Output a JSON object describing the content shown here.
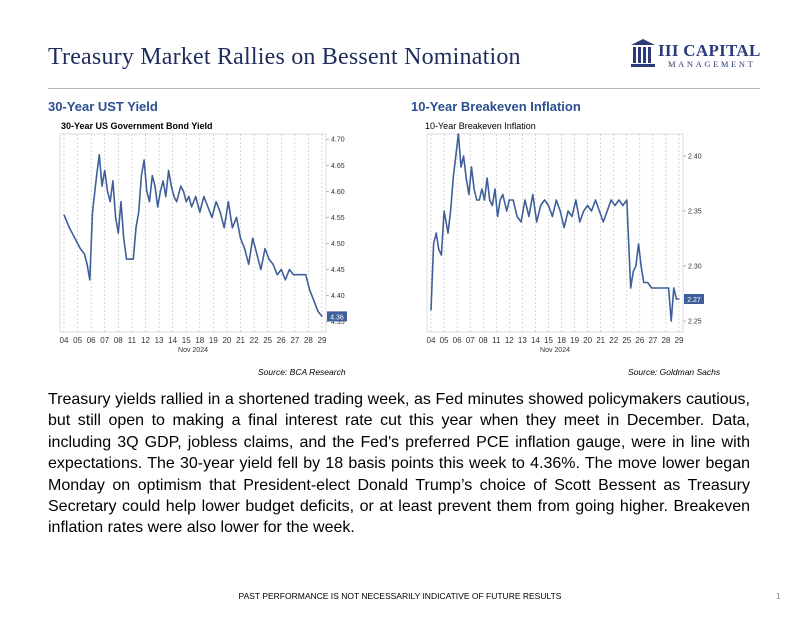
{
  "title": "Treasury Market Rallies on Bessent Nomination",
  "logo": {
    "name": "III CAPITAL",
    "sub": "MANAGEMENT"
  },
  "colors": {
    "title": "#1f2d5c",
    "heading": "#2b4f8f",
    "line": "#3f5f9a",
    "logo": "#2b3a78"
  },
  "charts": {
    "left": {
      "heading": "30-Year UST Yield",
      "source": "Source: BCA Research"
    },
    "right": {
      "heading": "10-Year Breakeven Inflation",
      "source": "Source: Goldman Sachs"
    }
  },
  "chart_data": [
    {
      "type": "line",
      "title": "30-Year US Government Bond Yield",
      "x_ticks": [
        "04",
        "05",
        "06",
        "07",
        "08",
        "11",
        "12",
        "13",
        "14",
        "15",
        "18",
        "19",
        "20",
        "21",
        "22",
        "25",
        "26",
        "27",
        "28",
        "29"
      ],
      "x_caption": "Nov 2024",
      "ylim": [
        4.33,
        4.71
      ],
      "y_ticks": [
        "4.70",
        "4.65",
        "4.60",
        "4.55",
        "4.50",
        "4.45",
        "4.40",
        "4.35"
      ],
      "last_value_label": "4.36",
      "grid": true,
      "series": [
        {
          "x": [
            0,
            0.4,
            0.8,
            1.2,
            1.5,
            1.7,
            1.9,
            2.1,
            2.4,
            2.6,
            2.8,
            3.0,
            3.2,
            3.4,
            3.6,
            3.8,
            4.0,
            4.2,
            4.4,
            4.6,
            4.9,
            5.1,
            5.3,
            5.5,
            5.7,
            5.9,
            6.1,
            6.3,
            6.5,
            6.7,
            6.9,
            7.1,
            7.3,
            7.5,
            7.7,
            7.9,
            8.1,
            8.3,
            8.6,
            8.8,
            9.0,
            9.2,
            9.4,
            9.7,
            10.0,
            10.3,
            10.6,
            10.9,
            11.2,
            11.5,
            11.8,
            12.1,
            12.4,
            12.7,
            13.0,
            13.3,
            13.6,
            13.9,
            14.2,
            14.5,
            14.8,
            15.1,
            15.4,
            15.7,
            16.0,
            16.3,
            16.6,
            16.9,
            17.2,
            17.5,
            17.8,
            18.1,
            18.4,
            18.7,
            19.0
          ],
          "y": [
            4.555,
            4.53,
            4.51,
            4.49,
            4.48,
            4.46,
            4.43,
            4.56,
            4.63,
            4.67,
            4.61,
            4.64,
            4.6,
            4.58,
            4.62,
            4.55,
            4.52,
            4.58,
            4.51,
            4.47,
            4.47,
            4.47,
            4.53,
            4.56,
            4.63,
            4.66,
            4.6,
            4.58,
            4.63,
            4.61,
            4.57,
            4.6,
            4.62,
            4.59,
            4.64,
            4.61,
            4.59,
            4.58,
            4.61,
            4.6,
            4.58,
            4.59,
            4.57,
            4.59,
            4.56,
            4.59,
            4.57,
            4.55,
            4.58,
            4.56,
            4.53,
            4.58,
            4.53,
            4.55,
            4.51,
            4.49,
            4.46,
            4.51,
            4.48,
            4.45,
            4.49,
            4.47,
            4.46,
            4.44,
            4.45,
            4.43,
            4.45,
            4.44,
            4.44,
            4.44,
            4.44,
            4.41,
            4.39,
            4.37,
            4.36
          ]
        }
      ]
    },
    {
      "type": "line",
      "title": "10-Year Breakeven Inflation",
      "x_ticks": [
        "04",
        "05",
        "06",
        "07",
        "08",
        "11",
        "12",
        "13",
        "14",
        "15",
        "18",
        "19",
        "20",
        "21",
        "22",
        "25",
        "26",
        "27",
        "28",
        "29"
      ],
      "x_caption": "Nov 2024",
      "ylim": [
        2.24,
        2.42
      ],
      "y_ticks": [
        "2.40",
        "2.35",
        "2.30",
        "2.25"
      ],
      "last_value_label": "2.27",
      "grid": true,
      "series": [
        {
          "x": [
            0,
            0.2,
            0.4,
            0.6,
            0.8,
            1.0,
            1.3,
            1.5,
            1.7,
            1.9,
            2.1,
            2.3,
            2.5,
            2.7,
            2.9,
            3.1,
            3.3,
            3.5,
            3.7,
            3.9,
            4.1,
            4.3,
            4.5,
            4.7,
            4.9,
            5.1,
            5.3,
            5.5,
            5.8,
            6.0,
            6.3,
            6.6,
            6.9,
            7.2,
            7.5,
            7.8,
            8.1,
            8.4,
            8.7,
            9.0,
            9.3,
            9.6,
            9.9,
            10.2,
            10.5,
            10.8,
            11.1,
            11.4,
            11.7,
            12.0,
            12.3,
            12.6,
            12.9,
            13.2,
            13.5,
            13.8,
            14.1,
            14.4,
            14.7,
            15.0,
            15.3,
            15.5,
            15.7,
            15.9,
            16.1,
            16.3,
            16.6,
            16.9,
            17.2,
            17.5,
            17.8,
            18.0,
            18.2,
            18.4,
            18.6,
            18.8,
            19.0
          ],
          "y": [
            2.26,
            2.32,
            2.33,
            2.315,
            2.31,
            2.35,
            2.33,
            2.35,
            2.38,
            2.4,
            2.42,
            2.39,
            2.4,
            2.38,
            2.365,
            2.39,
            2.37,
            2.36,
            2.36,
            2.37,
            2.36,
            2.38,
            2.36,
            2.355,
            2.37,
            2.345,
            2.36,
            2.365,
            2.35,
            2.36,
            2.36,
            2.345,
            2.34,
            2.36,
            2.345,
            2.365,
            2.34,
            2.355,
            2.36,
            2.355,
            2.345,
            2.36,
            2.35,
            2.335,
            2.35,
            2.345,
            2.36,
            2.34,
            2.35,
            2.355,
            2.35,
            2.36,
            2.35,
            2.34,
            2.35,
            2.36,
            2.355,
            2.36,
            2.355,
            2.36,
            2.28,
            2.295,
            2.3,
            2.32,
            2.3,
            2.285,
            2.285,
            2.28,
            2.28,
            2.28,
            2.28,
            2.28,
            2.28,
            2.25,
            2.28,
            2.27,
            2.27
          ]
        }
      ]
    }
  ],
  "body": "Treasury yields rallied in a shortened trading week, as Fed minutes showed policymakers cautious, but still open to making a final interest rate cut this year when they meet in December. Data, including 3Q GDP, jobless claims, and the Fed's preferred PCE inflation gauge, were in line with expectations. The 30-year yield fell by 18 basis points this week to 4.36%. The move lower began Monday on optimism that President-elect Donald Trump’s choice of Scott Bessent as Treasury Secretary could help lower budget deficits, or at least prevent them from going higher. Breakeven inflation rates were also lower for the week.",
  "footer": "PAST PERFORMANCE IS NOT NECESSARILY INDICATIVE OF FUTURE RESULTS",
  "page_number": "1"
}
